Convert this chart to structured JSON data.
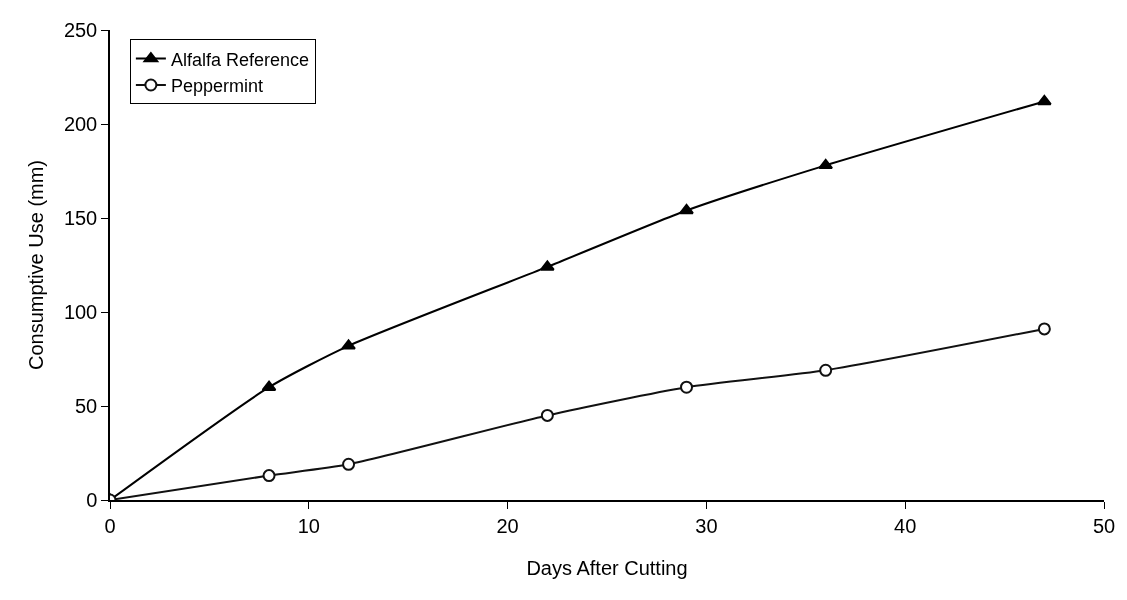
{
  "chart_data": {
    "type": "line",
    "xlabel": "Days After Cutting",
    "ylabel": "Consumptive Use (mm)",
    "x": [
      0,
      8,
      12,
      22,
      29,
      36,
      47
    ],
    "series": [
      {
        "name": "Alfalfa Reference",
        "color": "#000000",
        "marker": "triangle",
        "values": [
          0,
          60,
          82,
          124,
          154,
          178,
          212
        ]
      },
      {
        "name": "Peppermint",
        "color": "#111111",
        "marker": "circle",
        "values": [
          0,
          13,
          19,
          45,
          60,
          69,
          91
        ]
      }
    ],
    "xlim": [
      0,
      50
    ],
    "xticks": [
      0,
      10,
      20,
      30,
      40,
      50
    ],
    "ylim": [
      0,
      250
    ],
    "yticks": [
      0,
      50,
      100,
      150,
      200,
      250
    ],
    "grid": false,
    "legend": "top left",
    "line_style": "solid"
  }
}
